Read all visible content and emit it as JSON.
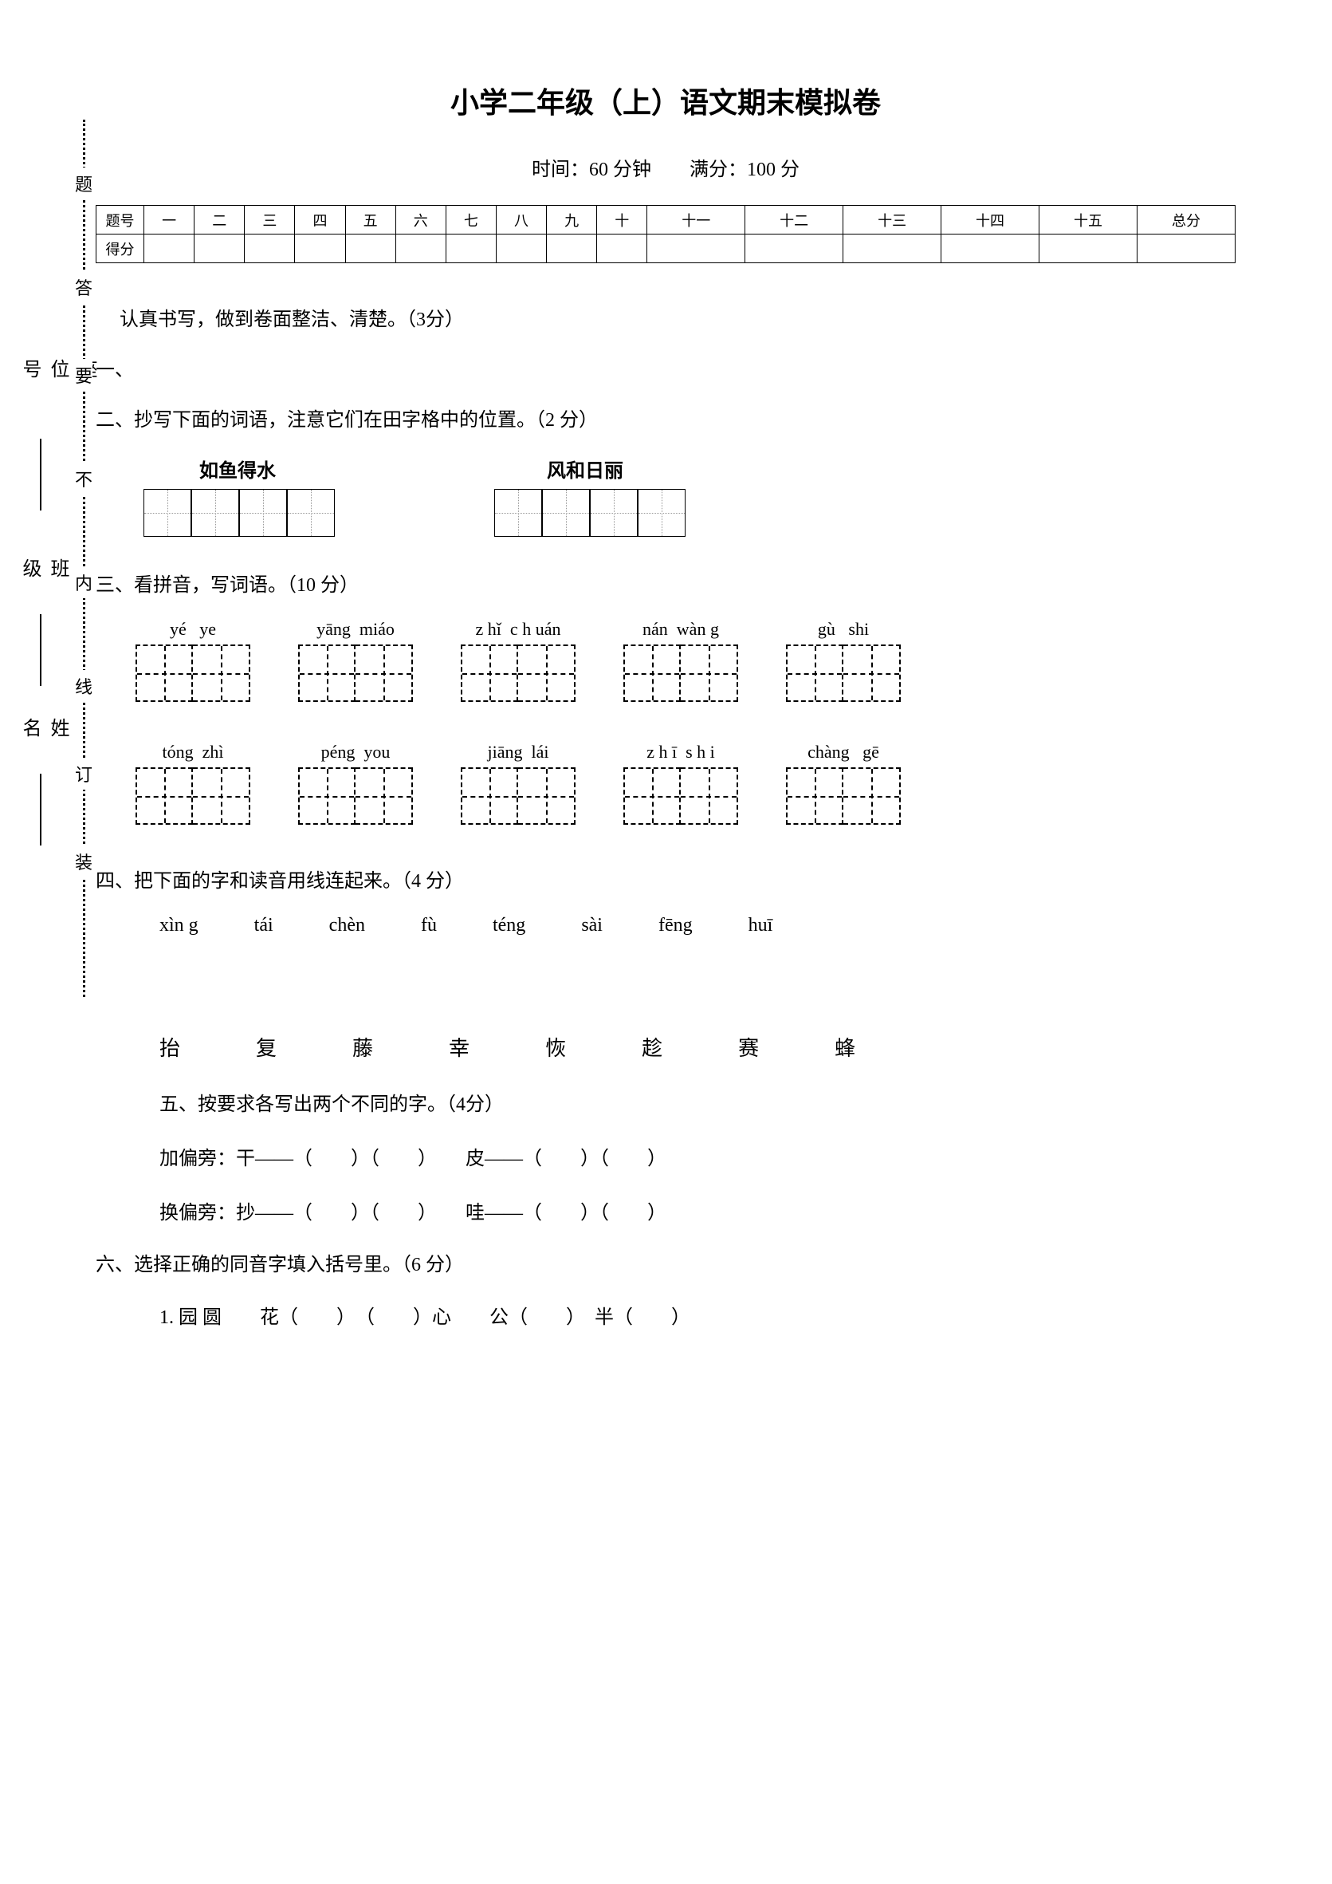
{
  "title": "小学二年级（上）语文期末模拟卷",
  "subtitle": "时间：60 分钟　　满分：100 分",
  "score_table": {
    "row_labels": [
      "题号",
      "得分"
    ],
    "headers": [
      "一",
      "二",
      "三",
      "四",
      "五",
      "六",
      "七",
      "八",
      "九",
      "十",
      "十一",
      "十二",
      "十三",
      "十四",
      "十五",
      "总分"
    ]
  },
  "q1": {
    "text": "认真书写，做到卷面整洁、清楚。（3分）",
    "num": "一、"
  },
  "q2": {
    "heading": "二、抄写下面的词语，注意它们在田字格中的位置。（2 分）",
    "idiom1": "如鱼得水",
    "idiom2": "风和日丽"
  },
  "q3": {
    "heading": "三、看拼音，写词语。（10 分）",
    "row1": [
      {
        "py": "yé   ye"
      },
      {
        "py": "yāng  miáo"
      },
      {
        "py": "z hǐ  c h uán"
      },
      {
        "py": "nán  wàn g"
      },
      {
        "py": "gù   shi"
      }
    ],
    "row2": [
      {
        "py": "tóng  zhì"
      },
      {
        "py": "péng  you"
      },
      {
        "py": "jiāng  lái"
      },
      {
        "py": "z h ī  s h i"
      },
      {
        "py": "chàng   gē"
      }
    ]
  },
  "q4": {
    "heading": "四、把下面的字和读音用线连起来。（4 分）",
    "pinyin": [
      "xìn g",
      "tái",
      "chèn",
      "fù",
      "téng",
      "sài",
      "fēng",
      "huī"
    ],
    "chars": [
      "抬",
      "复",
      "藤",
      "幸",
      "恢",
      "趁",
      "赛",
      "蜂"
    ]
  },
  "q5": {
    "heading": "五、按要求各写出两个不同的字。（4分）",
    "line1": "加偏旁：干——（　　）（　　）　　皮——（　　）（　　）",
    "line2": "换偏旁：抄——（　　）（　　）　　哇——（　　）（　　）"
  },
  "q6": {
    "heading": "六、选择正确的同音字填入括号里。（6 分）",
    "line1": "1. 园  圆　　花（　　）　（　　）心　　公（　　）　半（　　）"
  },
  "binding_chars": [
    "题",
    "答",
    "要",
    "不",
    "内",
    "线",
    "订",
    "装"
  ],
  "side": {
    "seat": "座位号",
    "class": "班级",
    "name": "姓名"
  }
}
